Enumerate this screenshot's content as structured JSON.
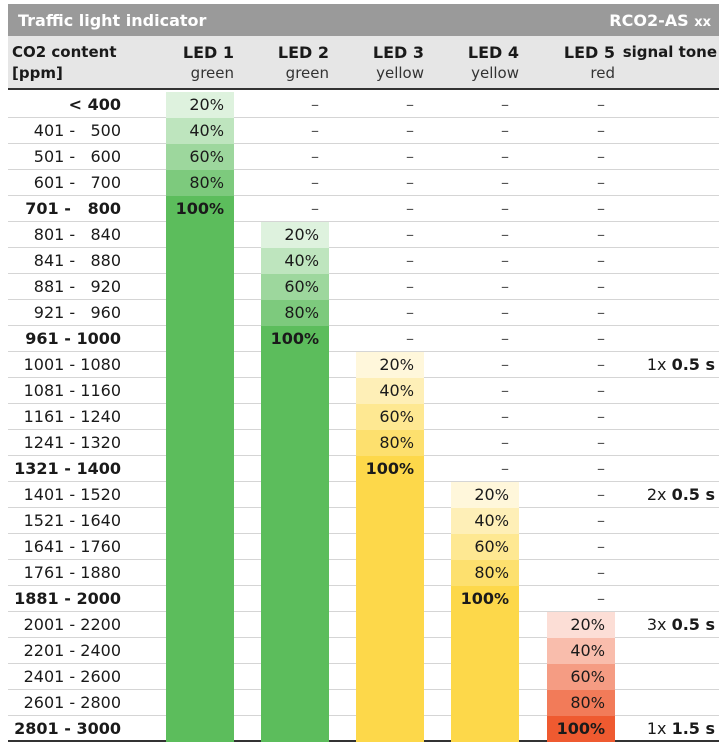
{
  "header": {
    "title": "Traffic light indicator",
    "model": "RCO2-AS",
    "model_suffix": "xx"
  },
  "columns": {
    "co2": {
      "line1": "CO2 content",
      "line2": "[ppm]"
    },
    "leds": [
      {
        "name": "LED 1",
        "color_name": "green"
      },
      {
        "name": "LED 2",
        "color_name": "green"
      },
      {
        "name": "LED 3",
        "color_name": "yellow"
      },
      {
        "name": "LED 4",
        "color_name": "yellow"
      },
      {
        "name": "LED 5",
        "color_name": "red"
      }
    ],
    "tone": "signal tone"
  },
  "colors": {
    "green": "#5cbd5c",
    "yellow": "#fdd84a",
    "red": "#ef5a30",
    "header_bg": "#e6e6e6",
    "title_bg": "#9a9a9a"
  },
  "dash": "–",
  "rows": [
    {
      "range": "< 400",
      "bold": true,
      "led": 0,
      "level": 20,
      "tone_count": "",
      "tone_dur": ""
    },
    {
      "range": "401 -   500",
      "bold": false,
      "led": 0,
      "level": 40,
      "tone_count": "",
      "tone_dur": ""
    },
    {
      "range": "501 -   600",
      "bold": false,
      "led": 0,
      "level": 60,
      "tone_count": "",
      "tone_dur": ""
    },
    {
      "range": "601 -   700",
      "bold": false,
      "led": 0,
      "level": 80,
      "tone_count": "",
      "tone_dur": ""
    },
    {
      "range": "701 -   800",
      "bold": true,
      "led": 0,
      "level": 100,
      "tone_count": "",
      "tone_dur": ""
    },
    {
      "range": "801 -   840",
      "bold": false,
      "led": 1,
      "level": 20,
      "tone_count": "",
      "tone_dur": ""
    },
    {
      "range": "841 -   880",
      "bold": false,
      "led": 1,
      "level": 40,
      "tone_count": "",
      "tone_dur": ""
    },
    {
      "range": "881 -   920",
      "bold": false,
      "led": 1,
      "level": 60,
      "tone_count": "",
      "tone_dur": ""
    },
    {
      "range": "921 -   960",
      "bold": false,
      "led": 1,
      "level": 80,
      "tone_count": "",
      "tone_dur": ""
    },
    {
      "range": "961 - 1000",
      "bold": true,
      "led": 1,
      "level": 100,
      "tone_count": "",
      "tone_dur": ""
    },
    {
      "range": "1001 - 1080",
      "bold": false,
      "led": 2,
      "level": 20,
      "tone_count": "1x",
      "tone_dur": "0.5 s"
    },
    {
      "range": "1081 - 1160",
      "bold": false,
      "led": 2,
      "level": 40,
      "tone_count": "",
      "tone_dur": ""
    },
    {
      "range": "1161 - 1240",
      "bold": false,
      "led": 2,
      "level": 60,
      "tone_count": "",
      "tone_dur": ""
    },
    {
      "range": "1241 - 1320",
      "bold": false,
      "led": 2,
      "level": 80,
      "tone_count": "",
      "tone_dur": ""
    },
    {
      "range": "1321 - 1400",
      "bold": true,
      "led": 2,
      "level": 100,
      "tone_count": "",
      "tone_dur": ""
    },
    {
      "range": "1401 - 1520",
      "bold": false,
      "led": 3,
      "level": 20,
      "tone_count": "2x",
      "tone_dur": "0.5 s"
    },
    {
      "range": "1521 - 1640",
      "bold": false,
      "led": 3,
      "level": 40,
      "tone_count": "",
      "tone_dur": ""
    },
    {
      "range": "1641 - 1760",
      "bold": false,
      "led": 3,
      "level": 60,
      "tone_count": "",
      "tone_dur": ""
    },
    {
      "range": "1761 - 1880",
      "bold": false,
      "led": 3,
      "level": 80,
      "tone_count": "",
      "tone_dur": ""
    },
    {
      "range": "1881 - 2000",
      "bold": true,
      "led": 3,
      "level": 100,
      "tone_count": "",
      "tone_dur": ""
    },
    {
      "range": "2001 - 2200",
      "bold": false,
      "led": 4,
      "level": 20,
      "tone_count": "3x",
      "tone_dur": "0.5 s"
    },
    {
      "range": "2201 - 2400",
      "bold": false,
      "led": 4,
      "level": 40,
      "tone_count": "",
      "tone_dur": ""
    },
    {
      "range": "2401 - 2600",
      "bold": false,
      "led": 4,
      "level": 60,
      "tone_count": "",
      "tone_dur": ""
    },
    {
      "range": "2601 - 2800",
      "bold": false,
      "led": 4,
      "level": 80,
      "tone_count": "",
      "tone_dur": ""
    },
    {
      "range": "2801 - 3000",
      "bold": true,
      "led": 4,
      "level": 100,
      "tone_count": "1x",
      "tone_dur": "1.5 s"
    }
  ]
}
